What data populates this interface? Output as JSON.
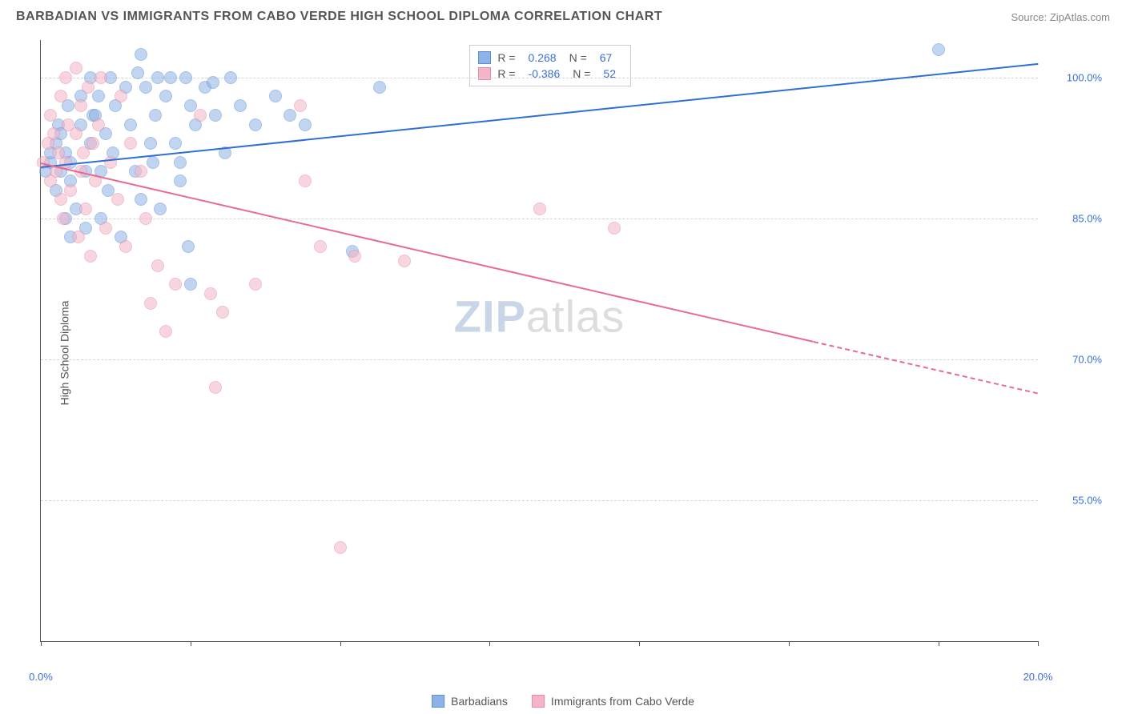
{
  "header": {
    "title": "BARBADIAN VS IMMIGRANTS FROM CABO VERDE HIGH SCHOOL DIPLOMA CORRELATION CHART",
    "source": "Source: ZipAtlas.com"
  },
  "chart": {
    "type": "scatter",
    "y_axis_label": "High School Diploma",
    "xlim": [
      0,
      20
    ],
    "ylim": [
      40,
      104
    ],
    "x_ticks": [
      0,
      3,
      6,
      9,
      12,
      15,
      18,
      20
    ],
    "x_tick_labels": {
      "0": "0.0%",
      "20": "20.0%"
    },
    "y_ticks": [
      55,
      70,
      85,
      100
    ],
    "y_tick_labels": [
      "55.0%",
      "70.0%",
      "85.0%",
      "100.0%"
    ],
    "grid_color": "#d5d5d5",
    "axis_color": "#555555",
    "background_color": "#ffffff",
    "tick_label_color": "#3b6fd6",
    "point_radius": 8,
    "point_opacity": 0.55,
    "series": [
      {
        "name": "Barbadians",
        "fill": "#8fb3e6",
        "stroke": "#5c8fd6",
        "line_color": "#2e6fd6",
        "R": "0.268",
        "N": "67",
        "trend": {
          "x1": 0,
          "y1": 90.5,
          "x2": 20,
          "y2": 101.5
        },
        "points": [
          [
            0.1,
            90
          ],
          [
            0.2,
            91
          ],
          [
            0.2,
            92
          ],
          [
            0.3,
            93
          ],
          [
            0.3,
            88
          ],
          [
            0.35,
            95
          ],
          [
            0.4,
            90
          ],
          [
            0.4,
            94
          ],
          [
            0.5,
            85
          ],
          [
            0.5,
            92
          ],
          [
            0.55,
            97
          ],
          [
            0.6,
            89
          ],
          [
            0.6,
            91
          ],
          [
            0.7,
            86
          ],
          [
            0.8,
            95
          ],
          [
            0.8,
            98
          ],
          [
            0.9,
            84
          ],
          [
            0.9,
            90
          ],
          [
            1.0,
            93
          ],
          [
            1.0,
            100
          ],
          [
            1.05,
            96
          ],
          [
            1.1,
            96
          ],
          [
            1.15,
            98
          ],
          [
            1.2,
            85
          ],
          [
            1.2,
            90
          ],
          [
            1.3,
            94
          ],
          [
            1.35,
            88
          ],
          [
            1.4,
            100
          ],
          [
            1.45,
            92
          ],
          [
            1.5,
            97
          ],
          [
            1.6,
            83
          ],
          [
            1.7,
            99
          ],
          [
            1.8,
            95
          ],
          [
            1.9,
            90
          ],
          [
            1.95,
            100.5
          ],
          [
            2.0,
            87
          ],
          [
            2.0,
            102.5
          ],
          [
            2.1,
            99
          ],
          [
            2.2,
            93
          ],
          [
            2.25,
            91
          ],
          [
            2.3,
            96
          ],
          [
            2.35,
            100
          ],
          [
            2.4,
            86
          ],
          [
            2.5,
            98
          ],
          [
            2.6,
            100
          ],
          [
            2.7,
            93
          ],
          [
            2.8,
            89
          ],
          [
            2.8,
            91
          ],
          [
            2.9,
            100
          ],
          [
            2.95,
            82
          ],
          [
            3.0,
            97
          ],
          [
            3.0,
            78
          ],
          [
            3.1,
            95
          ],
          [
            3.3,
            99
          ],
          [
            3.45,
            99.5
          ],
          [
            3.5,
            96
          ],
          [
            3.7,
            92
          ],
          [
            3.8,
            100
          ],
          [
            4.0,
            97
          ],
          [
            4.3,
            95
          ],
          [
            4.7,
            98
          ],
          [
            5.0,
            96
          ],
          [
            5.3,
            95
          ],
          [
            6.25,
            81.5
          ],
          [
            6.8,
            99
          ],
          [
            18.0,
            103
          ],
          [
            0.6,
            83
          ]
        ]
      },
      {
        "name": "Immigrants from Cabo Verde",
        "fill": "#f4b6c7",
        "stroke": "#e98aa6",
        "line_color": "#e86b92",
        "R": "-0.386",
        "N": "52",
        "trend": {
          "x1": 0,
          "y1": 91,
          "x2": 15.5,
          "y2": 72
        },
        "trend_dash": {
          "x1": 15.5,
          "y1": 72,
          "x2": 20,
          "y2": 66.5
        },
        "points": [
          [
            0.05,
            91
          ],
          [
            0.15,
            93
          ],
          [
            0.2,
            89
          ],
          [
            0.2,
            96
          ],
          [
            0.25,
            94
          ],
          [
            0.3,
            90
          ],
          [
            0.35,
            92
          ],
          [
            0.4,
            87
          ],
          [
            0.4,
            98
          ],
          [
            0.45,
            85
          ],
          [
            0.5,
            91
          ],
          [
            0.5,
            100
          ],
          [
            0.55,
            95
          ],
          [
            0.6,
            88
          ],
          [
            0.7,
            94
          ],
          [
            0.7,
            101
          ],
          [
            0.75,
            83
          ],
          [
            0.8,
            90
          ],
          [
            0.8,
            97
          ],
          [
            0.85,
            92
          ],
          [
            0.9,
            86
          ],
          [
            0.95,
            99
          ],
          [
            1.0,
            81
          ],
          [
            1.05,
            93
          ],
          [
            1.1,
            89
          ],
          [
            1.15,
            95
          ],
          [
            1.2,
            100
          ],
          [
            1.3,
            84
          ],
          [
            1.4,
            91
          ],
          [
            1.55,
            87
          ],
          [
            1.6,
            98
          ],
          [
            1.7,
            82
          ],
          [
            1.8,
            93
          ],
          [
            2.0,
            90
          ],
          [
            2.1,
            85
          ],
          [
            2.2,
            76
          ],
          [
            2.35,
            80
          ],
          [
            2.5,
            73
          ],
          [
            2.7,
            78
          ],
          [
            3.2,
            96
          ],
          [
            3.4,
            77
          ],
          [
            3.5,
            67
          ],
          [
            3.65,
            75
          ],
          [
            4.3,
            78
          ],
          [
            5.2,
            97
          ],
          [
            5.3,
            89
          ],
          [
            5.6,
            82
          ],
          [
            6.0,
            50
          ],
          [
            6.3,
            81
          ],
          [
            7.3,
            80.5
          ],
          [
            10.0,
            86
          ],
          [
            11.5,
            84
          ]
        ]
      }
    ],
    "watermark": {
      "part1": "ZIP",
      "part2": "atlas"
    },
    "legend": {
      "series1_label": "Barbadians",
      "series2_label": "Immigrants from Cabo Verde"
    }
  }
}
